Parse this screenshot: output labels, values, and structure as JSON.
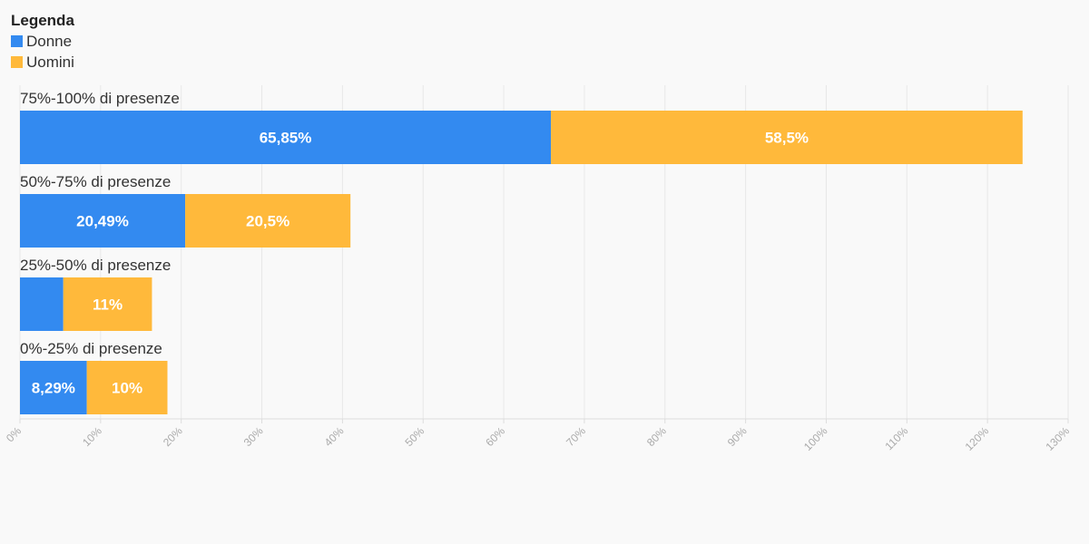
{
  "chart_data": {
    "type": "bar",
    "orientation": "horizontal",
    "stacked": true,
    "categories": [
      "75%-100% di presenze",
      "50%-75% di presenze",
      "25%-50% di presenze",
      "0%-25% di presenze"
    ],
    "series": [
      {
        "name": "Donne",
        "color": "#338af0",
        "values": [
          65.85,
          20.49,
          5.37,
          8.29
        ],
        "labels": [
          "65,85%",
          "20,49%",
          "",
          "8,29%"
        ]
      },
      {
        "name": "Uomini",
        "color": "#ffb93b",
        "values": [
          58.5,
          20.5,
          11,
          10
        ],
        "labels": [
          "58,5%",
          "20,5%",
          "11%",
          "10%"
        ]
      }
    ],
    "xlim": [
      0,
      130
    ],
    "xticks": [
      "0%",
      "10%",
      "20%",
      "30%",
      "40%",
      "50%",
      "60%",
      "70%",
      "80%",
      "90%",
      "100%",
      "110%",
      "120%",
      "130%"
    ],
    "grid": true,
    "legend": {
      "title": "Legenda",
      "position": "top-left"
    }
  }
}
